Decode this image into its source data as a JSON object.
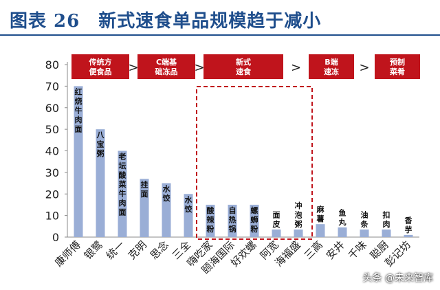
{
  "header": {
    "title": "图表 26　新式速食单品规模趋于减小"
  },
  "chart_data": {
    "type": "bar",
    "categories": [
      "康师傅",
      "银鹭",
      "统一",
      "克明",
      "思念",
      "三全",
      "嗨吃家",
      "颐海国际",
      "好欢螺",
      "阿宽",
      "海福盛",
      "三高",
      "安井",
      "千味",
      "聪厨",
      "彭记坊"
    ],
    "values": [
      70,
      50,
      40,
      27,
      25,
      20,
      15,
      15,
      15,
      3.5,
      3.5,
      6,
      4.5,
      3.5,
      3.5,
      1
    ],
    "bar_labels": [
      "红烧牛肉面",
      "八宝粥",
      "老坛酸菜牛肉面",
      "挂面",
      "水饺",
      "水饺",
      "酸辣粉",
      "自热锅",
      "螺蛳粉",
      "面皮",
      "冲泡粥",
      "麻薯",
      "鱼丸",
      "油条",
      "扣肉",
      "香芋"
    ],
    "yticks": [
      0,
      10,
      20,
      30,
      40,
      50,
      60,
      70,
      80
    ],
    "ylim": [
      0,
      80
    ],
    "xlabel": "",
    "ylabel": "",
    "bar_color": "#9aaed6",
    "grid": false,
    "segments": [
      {
        "label": "传统方便食品",
        "first": 0,
        "last": 2
      },
      {
        "label": "C端基础冻品",
        "first": 3,
        "last": 5
      },
      {
        "label": "新式速食",
        "first": 6,
        "last": 9
      },
      {
        "label": "B端速冻",
        "first": 11,
        "last": 12
      },
      {
        "label": "预制菜肴",
        "first": 14,
        "last": 15
      }
    ],
    "arrow": ">",
    "segment_color": "#c0141c",
    "highlight": {
      "first": 6,
      "last": 10,
      "color": "#c0141c"
    }
  },
  "watermark": "头条 @未来智库"
}
